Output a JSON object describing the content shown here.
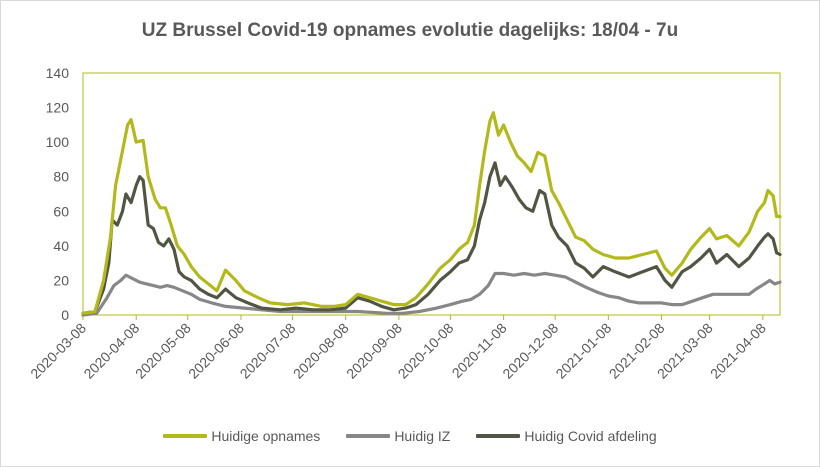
{
  "chart_data": {
    "type": "line",
    "title": "UZ Brussel Covid-19 opnames evolutie dagelijks: 18/04 - 7u",
    "xlabel": "",
    "ylabel": "",
    "ylim": [
      0,
      140
    ],
    "yticks": [
      0,
      20,
      40,
      60,
      80,
      100,
      120,
      140
    ],
    "xlim": [
      "2020-03-08",
      "2021-04-18"
    ],
    "xticks": [
      "2020-03-08",
      "2020-04-08",
      "2020-05-08",
      "2020-06-08",
      "2020-07-08",
      "2020-08-08",
      "2020-09-08",
      "2020-10-08",
      "2020-11-08",
      "2020-12-08",
      "2021-01-08",
      "2021-02-08",
      "2021-03-08",
      "2021-04-08"
    ],
    "grid": false,
    "legend_position": "bottom",
    "series": [
      {
        "name": "Huidige opnames",
        "color": "#b3b91b",
        "points": [
          [
            "2020-03-08",
            1
          ],
          [
            "2020-03-15",
            2
          ],
          [
            "2020-03-20",
            20
          ],
          [
            "2020-03-24",
            45
          ],
          [
            "2020-03-27",
            75
          ],
          [
            "2020-03-31",
            95
          ],
          [
            "2020-04-03",
            110
          ],
          [
            "2020-04-05",
            113
          ],
          [
            "2020-04-08",
            100
          ],
          [
            "2020-04-12",
            101
          ],
          [
            "2020-04-15",
            80
          ],
          [
            "2020-04-19",
            67
          ],
          [
            "2020-04-22",
            62
          ],
          [
            "2020-04-25",
            62
          ],
          [
            "2020-04-28",
            53
          ],
          [
            "2020-05-02",
            40
          ],
          [
            "2020-05-06",
            35
          ],
          [
            "2020-05-10",
            28
          ],
          [
            "2020-05-15",
            22
          ],
          [
            "2020-05-20",
            18
          ],
          [
            "2020-05-25",
            14
          ],
          [
            "2020-05-30",
            26
          ],
          [
            "2020-06-05",
            20
          ],
          [
            "2020-06-10",
            14
          ],
          [
            "2020-06-18",
            10
          ],
          [
            "2020-06-25",
            7
          ],
          [
            "2020-07-05",
            6
          ],
          [
            "2020-07-15",
            7
          ],
          [
            "2020-07-25",
            5
          ],
          [
            "2020-08-01",
            5
          ],
          [
            "2020-08-08",
            6
          ],
          [
            "2020-08-15",
            12
          ],
          [
            "2020-08-22",
            10
          ],
          [
            "2020-08-29",
            8
          ],
          [
            "2020-09-05",
            6
          ],
          [
            "2020-09-12",
            6
          ],
          [
            "2020-09-18",
            10
          ],
          [
            "2020-09-25",
            18
          ],
          [
            "2020-10-02",
            27
          ],
          [
            "2020-10-08",
            32
          ],
          [
            "2020-10-13",
            38
          ],
          [
            "2020-10-18",
            42
          ],
          [
            "2020-10-22",
            52
          ],
          [
            "2020-10-25",
            75
          ],
          [
            "2020-10-28",
            95
          ],
          [
            "2020-10-31",
            112
          ],
          [
            "2020-11-02",
            117
          ],
          [
            "2020-11-05",
            104
          ],
          [
            "2020-11-08",
            110
          ],
          [
            "2020-11-12",
            100
          ],
          [
            "2020-11-16",
            92
          ],
          [
            "2020-11-20",
            88
          ],
          [
            "2020-11-24",
            83
          ],
          [
            "2020-11-28",
            94
          ],
          [
            "2020-12-02",
            92
          ],
          [
            "2020-12-06",
            72
          ],
          [
            "2020-12-10",
            65
          ],
          [
            "2020-12-15",
            55
          ],
          [
            "2020-12-20",
            45
          ],
          [
            "2020-12-25",
            43
          ],
          [
            "2020-12-30",
            38
          ],
          [
            "2021-01-05",
            35
          ],
          [
            "2021-01-12",
            33
          ],
          [
            "2021-01-20",
            33
          ],
          [
            "2021-01-28",
            35
          ],
          [
            "2021-02-05",
            37
          ],
          [
            "2021-02-10",
            27
          ],
          [
            "2021-02-14",
            23
          ],
          [
            "2021-02-20",
            30
          ],
          [
            "2021-02-25",
            38
          ],
          [
            "2021-03-03",
            45
          ],
          [
            "2021-03-08",
            50
          ],
          [
            "2021-03-12",
            44
          ],
          [
            "2021-03-18",
            46
          ],
          [
            "2021-03-25",
            40
          ],
          [
            "2021-03-31",
            48
          ],
          [
            "2021-04-05",
            60
          ],
          [
            "2021-04-09",
            65
          ],
          [
            "2021-04-11",
            72
          ],
          [
            "2021-04-14",
            69
          ],
          [
            "2021-04-16",
            57
          ],
          [
            "2021-04-18",
            57
          ]
        ]
      },
      {
        "name": "Huidig IZ",
        "color": "#878787",
        "points": [
          [
            "2020-03-08",
            0
          ],
          [
            "2020-03-16",
            1
          ],
          [
            "2020-03-22",
            10
          ],
          [
            "2020-03-26",
            17
          ],
          [
            "2020-03-30",
            20
          ],
          [
            "2020-04-02",
            23
          ],
          [
            "2020-04-06",
            21
          ],
          [
            "2020-04-10",
            19
          ],
          [
            "2020-04-14",
            18
          ],
          [
            "2020-04-18",
            17
          ],
          [
            "2020-04-22",
            16
          ],
          [
            "2020-04-26",
            17
          ],
          [
            "2020-04-30",
            16
          ],
          [
            "2020-05-05",
            14
          ],
          [
            "2020-05-10",
            12
          ],
          [
            "2020-05-15",
            9
          ],
          [
            "2020-05-22",
            7
          ],
          [
            "2020-05-30",
            5
          ],
          [
            "2020-06-10",
            4
          ],
          [
            "2020-06-20",
            3
          ],
          [
            "2020-07-01",
            2
          ],
          [
            "2020-07-15",
            2
          ],
          [
            "2020-07-30",
            2
          ],
          [
            "2020-08-15",
            2
          ],
          [
            "2020-09-01",
            1
          ],
          [
            "2020-09-10",
            1
          ],
          [
            "2020-09-20",
            2
          ],
          [
            "2020-09-30",
            4
          ],
          [
            "2020-10-08",
            6
          ],
          [
            "2020-10-15",
            8
          ],
          [
            "2020-10-20",
            9
          ],
          [
            "2020-10-25",
            12
          ],
          [
            "2020-10-30",
            17
          ],
          [
            "2020-11-03",
            24
          ],
          [
            "2020-11-08",
            24
          ],
          [
            "2020-11-14",
            23
          ],
          [
            "2020-11-20",
            24
          ],
          [
            "2020-11-26",
            23
          ],
          [
            "2020-12-02",
            24
          ],
          [
            "2020-12-08",
            23
          ],
          [
            "2020-12-14",
            22
          ],
          [
            "2020-12-20",
            19
          ],
          [
            "2020-12-26",
            16
          ],
          [
            "2021-01-02",
            13
          ],
          [
            "2021-01-08",
            11
          ],
          [
            "2021-01-14",
            10
          ],
          [
            "2021-01-20",
            8
          ],
          [
            "2021-01-26",
            7
          ],
          [
            "2021-02-02",
            7
          ],
          [
            "2021-02-08",
            7
          ],
          [
            "2021-02-14",
            6
          ],
          [
            "2021-02-20",
            6
          ],
          [
            "2021-02-26",
            8
          ],
          [
            "2021-03-04",
            10
          ],
          [
            "2021-03-10",
            12
          ],
          [
            "2021-03-18",
            12
          ],
          [
            "2021-03-25",
            12
          ],
          [
            "2021-03-31",
            12
          ],
          [
            "2021-04-04",
            15
          ],
          [
            "2021-04-09",
            18
          ],
          [
            "2021-04-12",
            20
          ],
          [
            "2021-04-15",
            18
          ],
          [
            "2021-04-18",
            19
          ]
        ]
      },
      {
        "name": "Huidig Covid afdeling",
        "color": "#515543",
        "points": [
          [
            "2020-03-08",
            1
          ],
          [
            "2020-03-15",
            2
          ],
          [
            "2020-03-20",
            15
          ],
          [
            "2020-03-23",
            30
          ],
          [
            "2020-03-25",
            55
          ],
          [
            "2020-03-28",
            52
          ],
          [
            "2020-03-31",
            60
          ],
          [
            "2020-04-02",
            70
          ],
          [
            "2020-04-05",
            65
          ],
          [
            "2020-04-08",
            75
          ],
          [
            "2020-04-10",
            80
          ],
          [
            "2020-04-12",
            78
          ],
          [
            "2020-04-15",
            52
          ],
          [
            "2020-04-18",
            50
          ],
          [
            "2020-04-21",
            42
          ],
          [
            "2020-04-24",
            40
          ],
          [
            "2020-04-27",
            44
          ],
          [
            "2020-04-30",
            38
          ],
          [
            "2020-05-03",
            25
          ],
          [
            "2020-05-06",
            22
          ],
          [
            "2020-05-10",
            20
          ],
          [
            "2020-05-15",
            15
          ],
          [
            "2020-05-20",
            12
          ],
          [
            "2020-05-25",
            10
          ],
          [
            "2020-05-30",
            15
          ],
          [
            "2020-06-05",
            10
          ],
          [
            "2020-06-12",
            7
          ],
          [
            "2020-06-20",
            4
          ],
          [
            "2020-07-01",
            3
          ],
          [
            "2020-07-10",
            4
          ],
          [
            "2020-07-20",
            3
          ],
          [
            "2020-07-30",
            3
          ],
          [
            "2020-08-08",
            4
          ],
          [
            "2020-08-15",
            10
          ],
          [
            "2020-08-22",
            8
          ],
          [
            "2020-08-29",
            5
          ],
          [
            "2020-09-05",
            3
          ],
          [
            "2020-09-12",
            4
          ],
          [
            "2020-09-18",
            6
          ],
          [
            "2020-09-25",
            12
          ],
          [
            "2020-10-02",
            20
          ],
          [
            "2020-10-08",
            25
          ],
          [
            "2020-10-13",
            30
          ],
          [
            "2020-10-18",
            32
          ],
          [
            "2020-10-22",
            40
          ],
          [
            "2020-10-25",
            55
          ],
          [
            "2020-10-28",
            65
          ],
          [
            "2020-10-31",
            80
          ],
          [
            "2020-11-03",
            88
          ],
          [
            "2020-11-06",
            75
          ],
          [
            "2020-11-09",
            80
          ],
          [
            "2020-11-13",
            74
          ],
          [
            "2020-11-17",
            67
          ],
          [
            "2020-11-21",
            62
          ],
          [
            "2020-11-25",
            60
          ],
          [
            "2020-11-29",
            72
          ],
          [
            "2020-12-02",
            70
          ],
          [
            "2020-12-06",
            52
          ],
          [
            "2020-12-10",
            45
          ],
          [
            "2020-12-15",
            40
          ],
          [
            "2020-12-20",
            30
          ],
          [
            "2020-12-25",
            27
          ],
          [
            "2020-12-30",
            22
          ],
          [
            "2021-01-05",
            28
          ],
          [
            "2021-01-12",
            25
          ],
          [
            "2021-01-20",
            22
          ],
          [
            "2021-01-28",
            25
          ],
          [
            "2021-02-05",
            28
          ],
          [
            "2021-02-10",
            20
          ],
          [
            "2021-02-14",
            16
          ],
          [
            "2021-02-20",
            25
          ],
          [
            "2021-02-25",
            28
          ],
          [
            "2021-03-03",
            33
          ],
          [
            "2021-03-08",
            38
          ],
          [
            "2021-03-12",
            30
          ],
          [
            "2021-03-18",
            35
          ],
          [
            "2021-03-25",
            28
          ],
          [
            "2021-03-31",
            33
          ],
          [
            "2021-04-05",
            40
          ],
          [
            "2021-04-09",
            45
          ],
          [
            "2021-04-11",
            47
          ],
          [
            "2021-04-14",
            44
          ],
          [
            "2021-04-16",
            36
          ],
          [
            "2021-04-18",
            35
          ]
        ]
      }
    ]
  }
}
